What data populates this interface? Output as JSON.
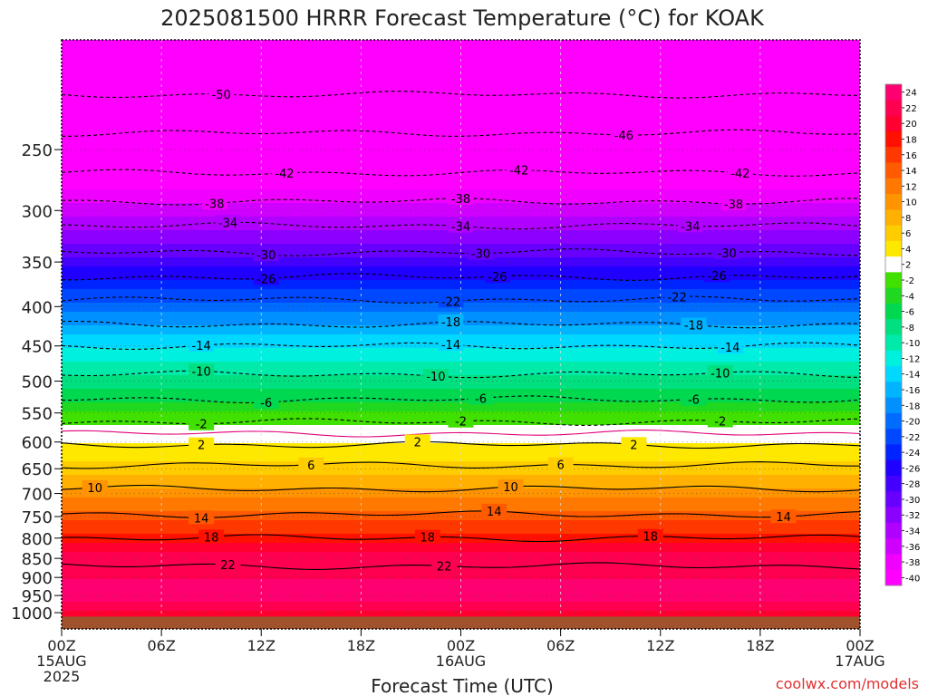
{
  "chart_data": {
    "type": "heatmap",
    "title": "2025081500 HRRR Forecast Temperature (°C) for KOAK",
    "xlabel": "Forecast Time (UTC)",
    "ylabel": "",
    "credit": "coolwx.com/models",
    "x_hours_range": [
      0,
      48
    ],
    "y_pressure_range": [
      1050,
      180
    ],
    "x_ticks": [
      {
        "hour": 0,
        "lines": [
          "00Z",
          "15AUG",
          "2025"
        ]
      },
      {
        "hour": 6,
        "lines": [
          "06Z"
        ]
      },
      {
        "hour": 12,
        "lines": [
          "12Z"
        ]
      },
      {
        "hour": 18,
        "lines": [
          "18Z"
        ]
      },
      {
        "hour": 24,
        "lines": [
          "00Z",
          "16AUG"
        ]
      },
      {
        "hour": 30,
        "lines": [
          "06Z"
        ]
      },
      {
        "hour": 36,
        "lines": [
          "12Z"
        ]
      },
      {
        "hour": 42,
        "lines": [
          "18Z"
        ]
      },
      {
        "hour": 48,
        "lines": [
          "00Z",
          "17AUG"
        ]
      }
    ],
    "y_ticks": [
      250,
      300,
      350,
      400,
      450,
      500,
      550,
      600,
      650,
      700,
      750,
      800,
      850,
      900,
      950,
      1000
    ],
    "colorbar": {
      "labels": [
        "24",
        "22",
        "20",
        "18",
        "16",
        "14",
        "12",
        "10",
        "8",
        "6",
        "4",
        "2",
        "-2",
        "-4",
        "-6",
        "-8",
        "-10",
        "-12",
        "-14",
        "-16",
        "-18",
        "-20",
        "-22",
        "-24",
        "-26",
        "-28",
        "-30",
        "-32",
        "-34",
        "-36",
        "-38",
        "-40"
      ],
      "colors": [
        "#ff0070",
        "#ff0050",
        "#ff0030",
        "#ff1000",
        "#ff3800",
        "#ff5a00",
        "#ff7800",
        "#ff9400",
        "#ffb000",
        "#ffcc00",
        "#ffe800",
        "#ffffff",
        "#40e000",
        "#20d820",
        "#00d850",
        "#00e080",
        "#00eaaa",
        "#00f0e0",
        "#00d8ff",
        "#00b4ff",
        "#0090ff",
        "#006cff",
        "#0048ff",
        "#0024ff",
        "#2000ff",
        "#4400ff",
        "#6800ff",
        "#8c00ff",
        "#b000ff",
        "#d000ff",
        "#f000ff",
        "#ff00ff"
      ]
    },
    "temperature_profile": [
      {
        "p": 200,
        "t": -52
      },
      {
        "p": 250,
        "t": -45
      },
      {
        "p": 300,
        "t": -37
      },
      {
        "p": 350,
        "t": -29
      },
      {
        "p": 400,
        "t": -21
      },
      {
        "p": 450,
        "t": -14
      },
      {
        "p": 500,
        "t": -9
      },
      {
        "p": 550,
        "t": -4
      },
      {
        "p": 580,
        "t": 1
      },
      {
        "p": 600,
        "t": 2
      },
      {
        "p": 650,
        "t": 5
      },
      {
        "p": 700,
        "t": 9
      },
      {
        "p": 750,
        "t": 13
      },
      {
        "p": 800,
        "t": 17
      },
      {
        "p": 850,
        "t": 21
      },
      {
        "p": 900,
        "t": 22
      },
      {
        "p": 950,
        "t": 23
      },
      {
        "p": 1000,
        "t": 20
      }
    ],
    "isotherms": [
      {
        "value": -50,
        "p": 212,
        "label": "-50",
        "label_hours": [
          9.6
        ]
      },
      {
        "value": -46,
        "p": 238,
        "label": "-46",
        "label_hours": [
          33.8
        ]
      },
      {
        "value": -42,
        "p": 268,
        "label": "-42",
        "label_hours": [
          13.4,
          27.5,
          40.8
        ]
      },
      {
        "value": -38,
        "p": 292,
        "label": "-38",
        "label_hours": [
          9.2,
          24.0,
          40.4
        ]
      },
      {
        "value": -34,
        "p": 314,
        "label": "-34",
        "label_hours": [
          10.0,
          24.0,
          37.8
        ]
      },
      {
        "value": -30,
        "p": 340,
        "label": "-30",
        "label_hours": [
          12.3,
          25.2,
          40.0
        ]
      },
      {
        "value": -26,
        "p": 366,
        "label": "-26",
        "label_hours": [
          12.3,
          26.2,
          39.4
        ]
      },
      {
        "value": -22,
        "p": 392,
        "label": "-22",
        "label_hours": [
          23.4,
          37.0
        ]
      },
      {
        "value": -18,
        "p": 422,
        "label": "-18",
        "label_hours": [
          23.4,
          38.0
        ]
      },
      {
        "value": -14,
        "p": 450,
        "label": "-14",
        "label_hours": [
          8.4,
          23.4,
          40.2
        ]
      },
      {
        "value": -10,
        "p": 490,
        "label": "-10",
        "label_hours": [
          8.4,
          22.5,
          39.6
        ]
      },
      {
        "value": -6,
        "p": 528,
        "label": "-6",
        "label_hours": [
          12.3,
          25.2,
          38.0
        ]
      },
      {
        "value": -2,
        "p": 565,
        "label": "-2",
        "label_hours": [
          8.4,
          24.0,
          39.6
        ]
      },
      {
        "value": 0,
        "p": 585,
        "label": "",
        "label_hours": []
      },
      {
        "value": 2,
        "p": 605,
        "label": "2",
        "label_hours": [
          8.4,
          21.4,
          34.4
        ]
      },
      {
        "value": 6,
        "p": 643,
        "label": "6",
        "label_hours": [
          15.0,
          30.0
        ]
      },
      {
        "value": 10,
        "p": 690,
        "label": "10",
        "label_hours": [
          2.0,
          27.0
        ]
      },
      {
        "value": 14,
        "p": 745,
        "label": "14",
        "label_hours": [
          8.4,
          26.0,
          43.4
        ]
      },
      {
        "value": 18,
        "p": 800,
        "label": "18",
        "label_hours": [
          9.0,
          22.0,
          35.4
        ]
      },
      {
        "value": 22,
        "p": 870,
        "label": "22",
        "label_hours": [
          10.0,
          23.0
        ]
      }
    ],
    "surface_pressure": 1012
  }
}
